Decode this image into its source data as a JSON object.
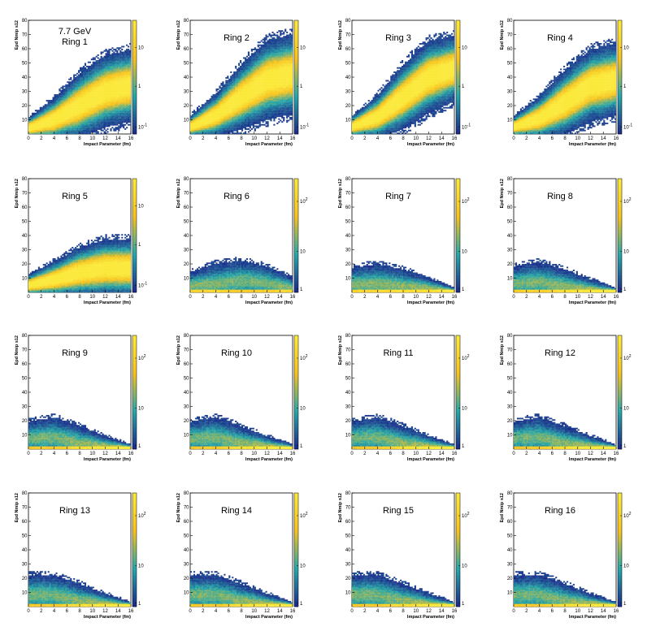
{
  "figure": {
    "energy_label": "7.7 GeV"
  },
  "colors": {
    "low": "#1c2d8c",
    "mid": "#27a8a8",
    "high": "#f6c21f",
    "top": "#fbe93a"
  },
  "chart_data": [
    {
      "type": "heatmap",
      "title": "Ring 1",
      "xlabel": "Impact Parameter (fm)",
      "ylabel": "Epd Nmip s12",
      "x_range": [
        0,
        16
      ],
      "y_range": [
        0,
        80
      ],
      "x_ticks": [
        "0",
        "2",
        "4",
        "6",
        "8",
        "10",
        "12",
        "14",
        "16"
      ],
      "y_ticks": [
        "10",
        "20",
        "30",
        "40",
        "50",
        "60",
        "70",
        "80"
      ],
      "z_ticks": [
        "10^-1",
        "1",
        "10"
      ],
      "z_scale": "log",
      "band_mean": {
        "b": [
          0,
          4,
          8,
          12,
          16
        ],
        "y": [
          4,
          10,
          20,
          30,
          34
        ]
      },
      "band_spread": [
        3,
        6,
        9,
        10,
        10
      ]
    },
    {
      "type": "heatmap",
      "title": "Ring 2",
      "xlabel": "Impact Parameter (fm)",
      "ylabel": "Epd Nmip s12",
      "x_range": [
        0,
        16
      ],
      "y_range": [
        0,
        80
      ],
      "x_ticks": [
        "0",
        "2",
        "4",
        "6",
        "8",
        "10",
        "12",
        "14",
        "16"
      ],
      "y_ticks": [
        "10",
        "20",
        "30",
        "40",
        "50",
        "60",
        "70",
        "80"
      ],
      "z_ticks": [
        "10^-1",
        "1",
        "10"
      ],
      "z_scale": "log",
      "band_mean": {
        "b": [
          0,
          4,
          8,
          12,
          16
        ],
        "y": [
          5,
          13,
          26,
          38,
          42
        ]
      },
      "band_spread": [
        3,
        6,
        9,
        11,
        11
      ]
    },
    {
      "type": "heatmap",
      "title": "Ring 3",
      "xlabel": "Impact Parameter (fm)",
      "ylabel": "Epd Nmip s12",
      "x_range": [
        0,
        16
      ],
      "y_range": [
        0,
        80
      ],
      "x_ticks": [
        "0",
        "2",
        "4",
        "6",
        "8",
        "10",
        "12",
        "14",
        "16"
      ],
      "y_ticks": [
        "10",
        "20",
        "30",
        "40",
        "50",
        "60",
        "70",
        "80"
      ],
      "z_ticks": [
        "10^-1",
        "1",
        "10"
      ],
      "z_scale": "log",
      "band_mean": {
        "b": [
          0,
          4,
          8,
          12,
          16
        ],
        "y": [
          5,
          12,
          26,
          40,
          46
        ]
      },
      "band_spread": [
        3,
        6,
        9,
        10,
        9
      ]
    },
    {
      "type": "heatmap",
      "title": "Ring 4",
      "xlabel": "Impact Parameter (fm)",
      "ylabel": "Epd Nmip s12",
      "x_range": [
        0,
        16
      ],
      "y_range": [
        0,
        80
      ],
      "x_ticks": [
        "0",
        "2",
        "4",
        "6",
        "8",
        "10",
        "12",
        "14",
        "16"
      ],
      "y_ticks": [
        "10",
        "20",
        "30",
        "40",
        "50",
        "60",
        "70",
        "80"
      ],
      "z_ticks": [
        "10^-1",
        "1",
        "10"
      ],
      "z_scale": "log",
      "band_mean": {
        "b": [
          0,
          4,
          8,
          12,
          16
        ],
        "y": [
          5,
          11,
          22,
          34,
          38
        ]
      },
      "band_spread": [
        3,
        6,
        9,
        10,
        10
      ]
    },
    {
      "type": "heatmap",
      "title": "Ring 5",
      "xlabel": "Impact Parameter (fm)",
      "ylabel": "Epd Nmip s12",
      "x_range": [
        0,
        16
      ],
      "y_range": [
        0,
        80
      ],
      "x_ticks": [
        "0",
        "2",
        "4",
        "6",
        "8",
        "10",
        "12",
        "14",
        "16"
      ],
      "y_ticks": [
        "10",
        "20",
        "30",
        "40",
        "50",
        "60",
        "70",
        "80"
      ],
      "z_ticks": [
        "10^-1",
        "1",
        "10"
      ],
      "z_scale": "log",
      "band_mean": {
        "b": [
          0,
          4,
          8,
          12,
          16
        ],
        "y": [
          5,
          9,
          14,
          17,
          17
        ]
      },
      "band_spread": [
        3,
        5,
        7,
        8,
        8
      ]
    },
    {
      "type": "heatmap",
      "title": "Ring 6",
      "xlabel": "Impact Parameter (fm)",
      "ylabel": "Epd Nmip s12",
      "x_range": [
        0,
        16
      ],
      "y_range": [
        0,
        80
      ],
      "x_ticks": [
        "0",
        "2",
        "4",
        "6",
        "8",
        "10",
        "12",
        "14",
        "16"
      ],
      "y_ticks": [
        "10",
        "20",
        "30",
        "40",
        "50",
        "60",
        "70",
        "80"
      ],
      "z_ticks": [
        "1",
        "10",
        "10^2"
      ],
      "z_scale": "log",
      "band_mean": {
        "b": [
          0,
          4,
          8,
          12,
          16
        ],
        "y": [
          6,
          8,
          10,
          8,
          4
        ]
      },
      "band_spread": [
        4,
        6,
        6,
        5,
        3
      ]
    },
    {
      "type": "heatmap",
      "title": "Ring 7",
      "xlabel": "Impact Parameter (fm)",
      "ylabel": "Epd Nmip s12",
      "x_range": [
        0,
        16
      ],
      "y_range": [
        0,
        80
      ],
      "x_ticks": [
        "0",
        "2",
        "4",
        "6",
        "8",
        "10",
        "12",
        "14",
        "16"
      ],
      "y_ticks": [
        "10",
        "20",
        "30",
        "40",
        "50",
        "60",
        "70",
        "80"
      ],
      "z_ticks": [
        "1",
        "10",
        "10^2"
      ],
      "z_scale": "log",
      "band_mean": {
        "b": [
          0,
          4,
          8,
          12,
          16
        ],
        "y": [
          7,
          8,
          6,
          4,
          1
        ]
      },
      "band_spread": [
        5,
        6,
        5,
        3,
        1
      ]
    },
    {
      "type": "heatmap",
      "title": "Ring 8",
      "xlabel": "Impact Parameter (fm)",
      "ylabel": "Epd Nmip s12",
      "x_range": [
        0,
        16
      ],
      "y_range": [
        0,
        80
      ],
      "x_ticks": [
        "0",
        "2",
        "4",
        "6",
        "8",
        "10",
        "12",
        "14",
        "16"
      ],
      "y_ticks": [
        "10",
        "20",
        "30",
        "40",
        "50",
        "60",
        "70",
        "80"
      ],
      "z_ticks": [
        "1",
        "10",
        "10^2"
      ],
      "z_scale": "log",
      "band_mean": {
        "b": [
          0,
          4,
          8,
          12,
          16
        ],
        "y": [
          8,
          9,
          6,
          3,
          1
        ]
      },
      "band_spread": [
        5,
        6,
        5,
        3,
        1
      ]
    },
    {
      "type": "heatmap",
      "title": "Ring 9",
      "xlabel": "Impact Parameter (fm)",
      "ylabel": "Epd Nmip s12",
      "x_range": [
        0,
        16
      ],
      "y_range": [
        0,
        80
      ],
      "x_ticks": [
        "0",
        "2",
        "4",
        "6",
        "8",
        "10",
        "12",
        "14",
        "16"
      ],
      "y_ticks": [
        "10",
        "20",
        "30",
        "40",
        "50",
        "60",
        "70",
        "80"
      ],
      "z_ticks": [
        "1",
        "10",
        "10^2"
      ],
      "z_scale": "log",
      "band_mean": {
        "b": [
          0,
          4,
          8,
          12,
          16
        ],
        "y": [
          9,
          10,
          6,
          3,
          1
        ]
      },
      "band_spread": [
        5,
        6,
        5,
        3,
        1
      ]
    },
    {
      "type": "heatmap",
      "title": "Ring 10",
      "xlabel": "Impact Parameter (fm)",
      "ylabel": "Epd Nmip s12",
      "x_range": [
        0,
        16
      ],
      "y_range": [
        0,
        80
      ],
      "x_ticks": [
        "0",
        "2",
        "4",
        "6",
        "8",
        "10",
        "12",
        "14",
        "16"
      ],
      "y_ticks": [
        "10",
        "20",
        "30",
        "40",
        "50",
        "60",
        "70",
        "80"
      ],
      "z_ticks": [
        "1",
        "10",
        "10^2"
      ],
      "z_scale": "log",
      "band_mean": {
        "b": [
          0,
          4,
          8,
          12,
          16
        ],
        "y": [
          9,
          10,
          6,
          3,
          1
        ]
      },
      "band_spread": [
        5,
        6,
        5,
        3,
        1
      ]
    },
    {
      "type": "heatmap",
      "title": "Ring 11",
      "xlabel": "Impact Parameter (fm)",
      "ylabel": "Epd Nmip s12",
      "x_range": [
        0,
        16
      ],
      "y_range": [
        0,
        80
      ],
      "x_ticks": [
        "0",
        "2",
        "4",
        "6",
        "8",
        "10",
        "12",
        "14",
        "16"
      ],
      "y_ticks": [
        "10",
        "20",
        "30",
        "40",
        "50",
        "60",
        "70",
        "80"
      ],
      "z_ticks": [
        "1",
        "10",
        "10^2"
      ],
      "z_scale": "log",
      "band_mean": {
        "b": [
          0,
          4,
          8,
          12,
          16
        ],
        "y": [
          9,
          10,
          6,
          3,
          1
        ]
      },
      "band_spread": [
        5,
        6,
        5,
        3,
        1
      ]
    },
    {
      "type": "heatmap",
      "title": "Ring 12",
      "xlabel": "Impact Parameter (fm)",
      "ylabel": "Epd Nmip s12",
      "x_range": [
        0,
        16
      ],
      "y_range": [
        0,
        80
      ],
      "x_ticks": [
        "0",
        "2",
        "4",
        "6",
        "8",
        "10",
        "12",
        "14",
        "16"
      ],
      "y_ticks": [
        "10",
        "20",
        "30",
        "40",
        "50",
        "60",
        "70",
        "80"
      ],
      "z_ticks": [
        "1",
        "10",
        "10^2"
      ],
      "z_scale": "log",
      "band_mean": {
        "b": [
          0,
          4,
          8,
          12,
          16
        ],
        "y": [
          9,
          10,
          6,
          3,
          1
        ]
      },
      "band_spread": [
        5,
        6,
        5,
        3,
        1
      ]
    },
    {
      "type": "heatmap",
      "title": "Ring 13",
      "xlabel": "Impact Parameter (fm)",
      "ylabel": "Epd Nmip s12",
      "x_range": [
        0,
        16
      ],
      "y_range": [
        0,
        80
      ],
      "x_ticks": [
        "0",
        "2",
        "4",
        "6",
        "8",
        "10",
        "12",
        "14",
        "16"
      ],
      "y_ticks": [
        "10",
        "20",
        "30",
        "40",
        "50",
        "60",
        "70",
        "80"
      ],
      "z_ticks": [
        "1",
        "10",
        "10^2"
      ],
      "z_scale": "log",
      "band_mean": {
        "b": [
          0,
          4,
          8,
          12,
          16
        ],
        "y": [
          10,
          10,
          6,
          3,
          1
        ]
      },
      "band_spread": [
        6,
        6,
        5,
        3,
        1
      ]
    },
    {
      "type": "heatmap",
      "title": "Ring 14",
      "xlabel": "Impact Parameter (fm)",
      "ylabel": "Epd Nmip s12",
      "x_range": [
        0,
        16
      ],
      "y_range": [
        0,
        80
      ],
      "x_ticks": [
        "0",
        "2",
        "4",
        "6",
        "8",
        "10",
        "12",
        "14",
        "16"
      ],
      "y_ticks": [
        "10",
        "20",
        "30",
        "40",
        "50",
        "60",
        "70",
        "80"
      ],
      "z_ticks": [
        "1",
        "10",
        "10^2"
      ],
      "z_scale": "log",
      "band_mean": {
        "b": [
          0,
          4,
          8,
          12,
          16
        ],
        "y": [
          10,
          10,
          6,
          3,
          1
        ]
      },
      "band_spread": [
        6,
        6,
        5,
        3,
        1
      ]
    },
    {
      "type": "heatmap",
      "title": "Ring 15",
      "xlabel": "Impact Parameter (fm)",
      "ylabel": "Epd Nmip s12",
      "x_range": [
        0,
        16
      ],
      "y_range": [
        0,
        80
      ],
      "x_ticks": [
        "0",
        "2",
        "4",
        "6",
        "8",
        "10",
        "12",
        "14",
        "16"
      ],
      "y_ticks": [
        "10",
        "20",
        "30",
        "40",
        "50",
        "60",
        "70",
        "80"
      ],
      "z_ticks": [
        "1",
        "10",
        "10^2"
      ],
      "z_scale": "log",
      "band_mean": {
        "b": [
          0,
          4,
          8,
          12,
          16
        ],
        "y": [
          10,
          10,
          6,
          3,
          1
        ]
      },
      "band_spread": [
        6,
        6,
        5,
        3,
        1
      ]
    },
    {
      "type": "heatmap",
      "title": "Ring 16",
      "xlabel": "Impact Parameter (fm)",
      "ylabel": "Epd Nmip s12",
      "x_range": [
        0,
        16
      ],
      "y_range": [
        0,
        80
      ],
      "x_ticks": [
        "0",
        "2",
        "4",
        "6",
        "8",
        "10",
        "12",
        "14",
        "16"
      ],
      "y_ticks": [
        "10",
        "20",
        "30",
        "40",
        "50",
        "60",
        "70",
        "80"
      ],
      "z_ticks": [
        "1",
        "10",
        "10^2"
      ],
      "z_scale": "log",
      "band_mean": {
        "b": [
          0,
          4,
          8,
          12,
          16
        ],
        "y": [
          10,
          10,
          6,
          3,
          1
        ]
      },
      "band_spread": [
        6,
        6,
        5,
        3,
        1
      ]
    }
  ]
}
